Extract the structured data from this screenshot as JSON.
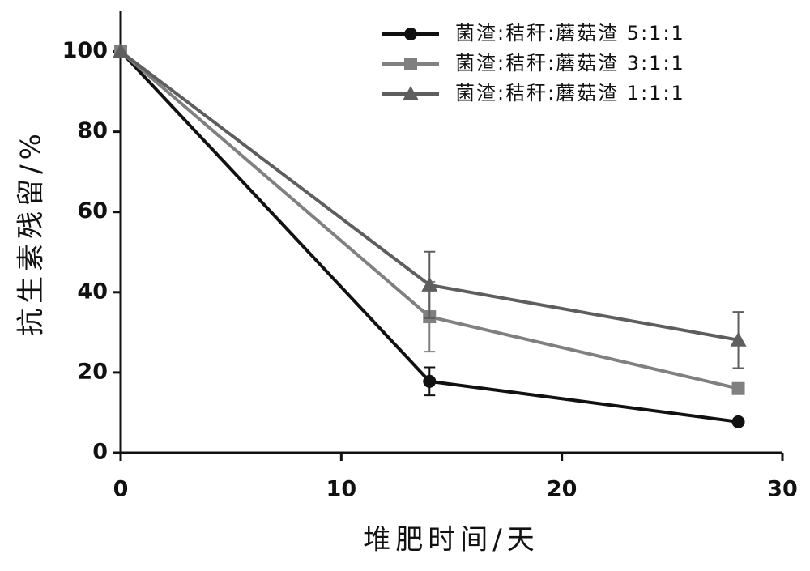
{
  "chart_data": {
    "type": "line",
    "x_label": "堆肥时间/天",
    "y_label": "抗生素残留/%",
    "x": [
      0,
      14,
      28
    ],
    "series": [
      {
        "name": "菌渣:秸秆:蘑菇渣 5:1:1",
        "color": "#111111",
        "marker": "circle",
        "values": [
          100,
          17.8,
          7.7
        ],
        "errors": [
          null,
          3.5,
          null
        ]
      },
      {
        "name": "菌渣:秸秆:蘑菇渣 3:1:1",
        "color": "#808080",
        "marker": "square",
        "values": [
          100,
          33.9,
          16
        ],
        "errors": [
          null,
          8.7,
          null
        ]
      },
      {
        "name": "菌渣:秸秆:蘑菇渣 1:1:1",
        "color": "#5e5e5e",
        "marker": "triangle",
        "values": [
          100,
          41.8,
          28.1
        ],
        "errors": [
          null,
          8.3,
          7
        ]
      }
    ],
    "xlim": [
      0,
      30
    ],
    "xticks": [
      0,
      10,
      20,
      30
    ],
    "ylim": [
      0,
      110
    ],
    "yticks": [
      0,
      20,
      40,
      60,
      80,
      100
    ],
    "legend": "upper-right",
    "grid": false
  }
}
